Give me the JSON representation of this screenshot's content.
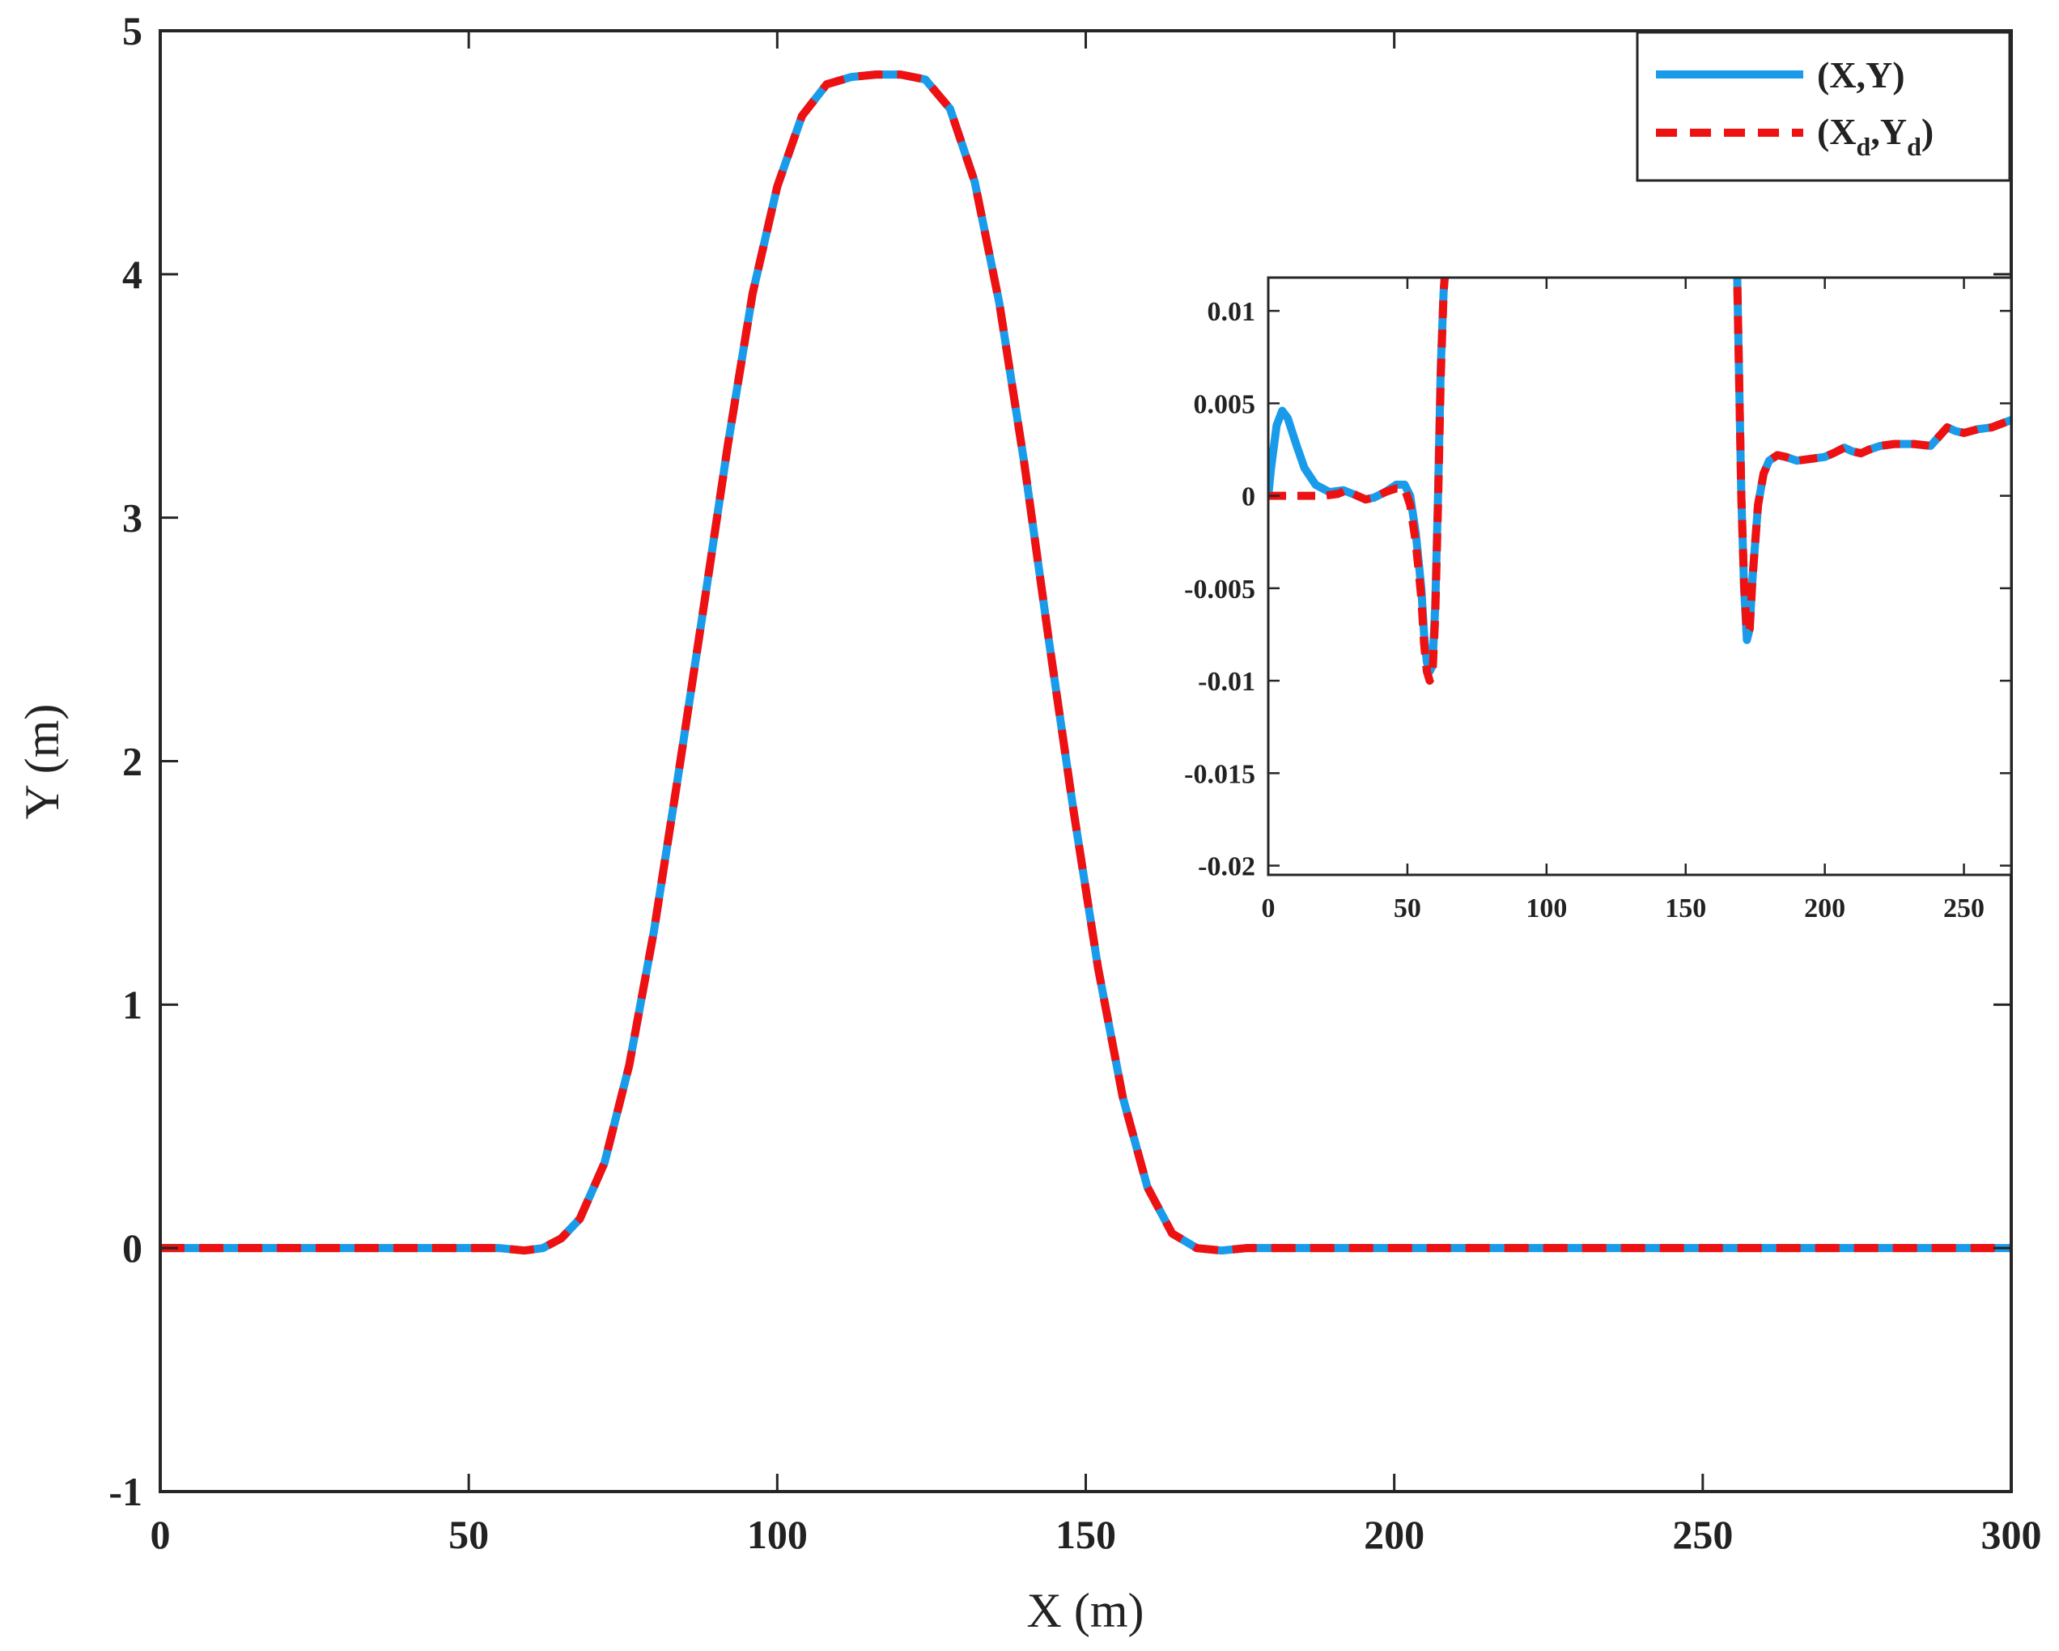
{
  "chart_data": [
    {
      "type": "line",
      "xlabel": "X (m)",
      "ylabel": "Y (m)",
      "xlim": [
        0,
        300
      ],
      "ylim": [
        -1,
        5
      ],
      "xticks": [
        "0",
        "50",
        "100",
        "150",
        "200",
        "250",
        "300"
      ],
      "yticks": [
        "-1",
        "0",
        "1",
        "2",
        "3",
        "4",
        "5"
      ],
      "grid": false,
      "legend_position": "top-right",
      "legend": {
        "actual_label": "(X,Y)",
        "desired_base_X": "(X",
        "desired_sub_1": "d",
        "desired_mid": ",Y",
        "desired_sub_2": "d",
        "desired_close": ")"
      },
      "series": [
        {
          "name": "(X,Y)",
          "style": "solid",
          "color": "#1a9bea",
          "x": [
            0,
            10,
            20,
            30,
            40,
            50,
            55,
            59,
            62,
            65,
            68,
            72,
            76,
            80,
            84,
            88,
            92,
            96,
            100,
            104,
            108,
            112,
            116,
            120,
            124,
            128,
            132,
            136,
            140,
            144,
            148,
            152,
            156,
            160,
            164,
            168,
            172,
            176,
            180,
            190,
            200,
            220,
            240,
            260,
            280,
            300
          ],
          "y": [
            0.0,
            0.0,
            0.0,
            0.0,
            0.0,
            0.0,
            0.0,
            -0.01,
            0.0,
            0.04,
            0.12,
            0.35,
            0.75,
            1.3,
            1.95,
            2.62,
            3.3,
            3.92,
            4.36,
            4.65,
            4.78,
            4.81,
            4.82,
            4.82,
            4.8,
            4.68,
            4.38,
            3.88,
            3.23,
            2.5,
            1.8,
            1.15,
            0.62,
            0.25,
            0.06,
            0.0,
            -0.01,
            0.0,
            0.0,
            0.0,
            0.0,
            0.0,
            0.0,
            0.0,
            0.0,
            0.0
          ]
        },
        {
          "name": "(X_d,Y_d)",
          "style": "dashed",
          "color": "#ee1111",
          "x": [
            0,
            10,
            20,
            30,
            40,
            50,
            55,
            59,
            62,
            65,
            68,
            72,
            76,
            80,
            84,
            88,
            92,
            96,
            100,
            104,
            108,
            112,
            116,
            120,
            124,
            128,
            132,
            136,
            140,
            144,
            148,
            152,
            156,
            160,
            164,
            168,
            172,
            176,
            180,
            190,
            200,
            220,
            240,
            260,
            280,
            300
          ],
          "y": [
            0.0,
            0.0,
            0.0,
            0.0,
            0.0,
            0.0,
            0.0,
            -0.01,
            0.0,
            0.04,
            0.12,
            0.35,
            0.75,
            1.3,
            1.95,
            2.62,
            3.3,
            3.92,
            4.36,
            4.65,
            4.78,
            4.81,
            4.82,
            4.82,
            4.8,
            4.68,
            4.38,
            3.88,
            3.23,
            2.5,
            1.8,
            1.15,
            0.62,
            0.25,
            0.06,
            0.0,
            -0.01,
            0.0,
            0.0,
            0.0,
            0.0,
            0.0,
            0.0,
            0.0,
            0.0,
            0.0
          ]
        }
      ]
    },
    {
      "type": "line",
      "inset": true,
      "xlabel": "",
      "ylabel": "",
      "xlim": [
        0,
        267
      ],
      "ylim": [
        -0.0205,
        0.0118
      ],
      "xticks": [
        "0",
        "50",
        "100",
        "150",
        "200",
        "250"
      ],
      "yticks": [
        "-0.02",
        "-0.015",
        "-0.01",
        "-0.005",
        "0",
        "0.005",
        "0.01"
      ],
      "grid": false,
      "series": [
        {
          "name": "(X,Y)",
          "style": "solid",
          "color": "#1a9bea",
          "x": [
            0,
            1,
            3,
            5,
            7,
            10,
            13,
            17,
            22,
            27,
            32,
            35,
            38,
            42,
            46,
            49,
            51,
            53,
            55,
            56,
            57,
            58,
            59,
            60,
            61,
            62,
            63,
            63.5,
            168.5,
            169,
            170,
            171,
            172,
            173,
            174,
            176,
            178,
            180,
            183,
            186,
            190,
            195,
            200,
            203,
            207,
            210,
            213,
            216,
            220,
            225,
            232,
            238,
            241,
            244,
            247,
            250,
            255,
            260,
            267
          ],
          "y": [
            0.0,
            0.0015,
            0.0038,
            0.0046,
            0.0042,
            0.0028,
            0.0015,
            0.0006,
            0.0002,
            0.0003,
            0.0,
            -0.0002,
            -0.0001,
            0.0002,
            0.0006,
            0.0006,
            0.0,
            -0.002,
            -0.005,
            -0.0075,
            -0.009,
            -0.0095,
            -0.0092,
            -0.006,
            0.0,
            0.007,
            0.011,
            0.012,
            0.012,
            0.008,
            0.0,
            -0.005,
            -0.0078,
            -0.0072,
            -0.0045,
            -0.0005,
            0.0012,
            0.0019,
            0.0022,
            0.0021,
            0.0019,
            0.002,
            0.0021,
            0.0023,
            0.0026,
            0.0024,
            0.0023,
            0.0025,
            0.0027,
            0.0028,
            0.0028,
            0.0027,
            0.0032,
            0.0037,
            0.0035,
            0.0034,
            0.0036,
            0.0037,
            0.0041
          ]
        },
        {
          "name": "(X_d,Y_d)",
          "style": "dashed",
          "color": "#ee1111",
          "x": [
            0,
            10,
            20,
            25,
            28,
            32,
            35,
            38,
            42,
            46,
            49,
            51,
            53,
            55,
            56,
            57,
            58,
            59,
            60,
            61,
            62,
            63,
            63.5,
            168.5,
            169,
            170,
            171,
            172,
            173,
            174,
            176,
            178,
            180,
            183,
            186,
            190,
            195,
            200,
            203,
            207,
            210,
            213,
            216,
            220,
            225,
            232,
            238,
            241,
            244,
            247,
            250,
            255,
            260,
            267
          ],
          "y": [
            0.0,
            0.0,
            0.0,
            0.0001,
            0.0003,
            0.0,
            -0.0002,
            -0.0001,
            0.0002,
            0.0004,
            0.0004,
            -0.0005,
            -0.0025,
            -0.0055,
            -0.008,
            -0.0095,
            -0.01,
            -0.0097,
            -0.0065,
            -0.0005,
            0.0065,
            0.011,
            0.012,
            0.012,
            0.008,
            0.0,
            -0.0048,
            -0.0074,
            -0.0072,
            -0.0045,
            -0.0005,
            0.0012,
            0.0019,
            0.0022,
            0.0021,
            0.0019,
            0.002,
            0.0021,
            0.0023,
            0.0026,
            0.0024,
            0.0023,
            0.0025,
            0.0027,
            0.0028,
            0.0028,
            0.0027,
            0.0032,
            0.0037,
            0.0035,
            0.0034,
            0.0036,
            0.0037,
            0.0041
          ]
        }
      ]
    }
  ]
}
